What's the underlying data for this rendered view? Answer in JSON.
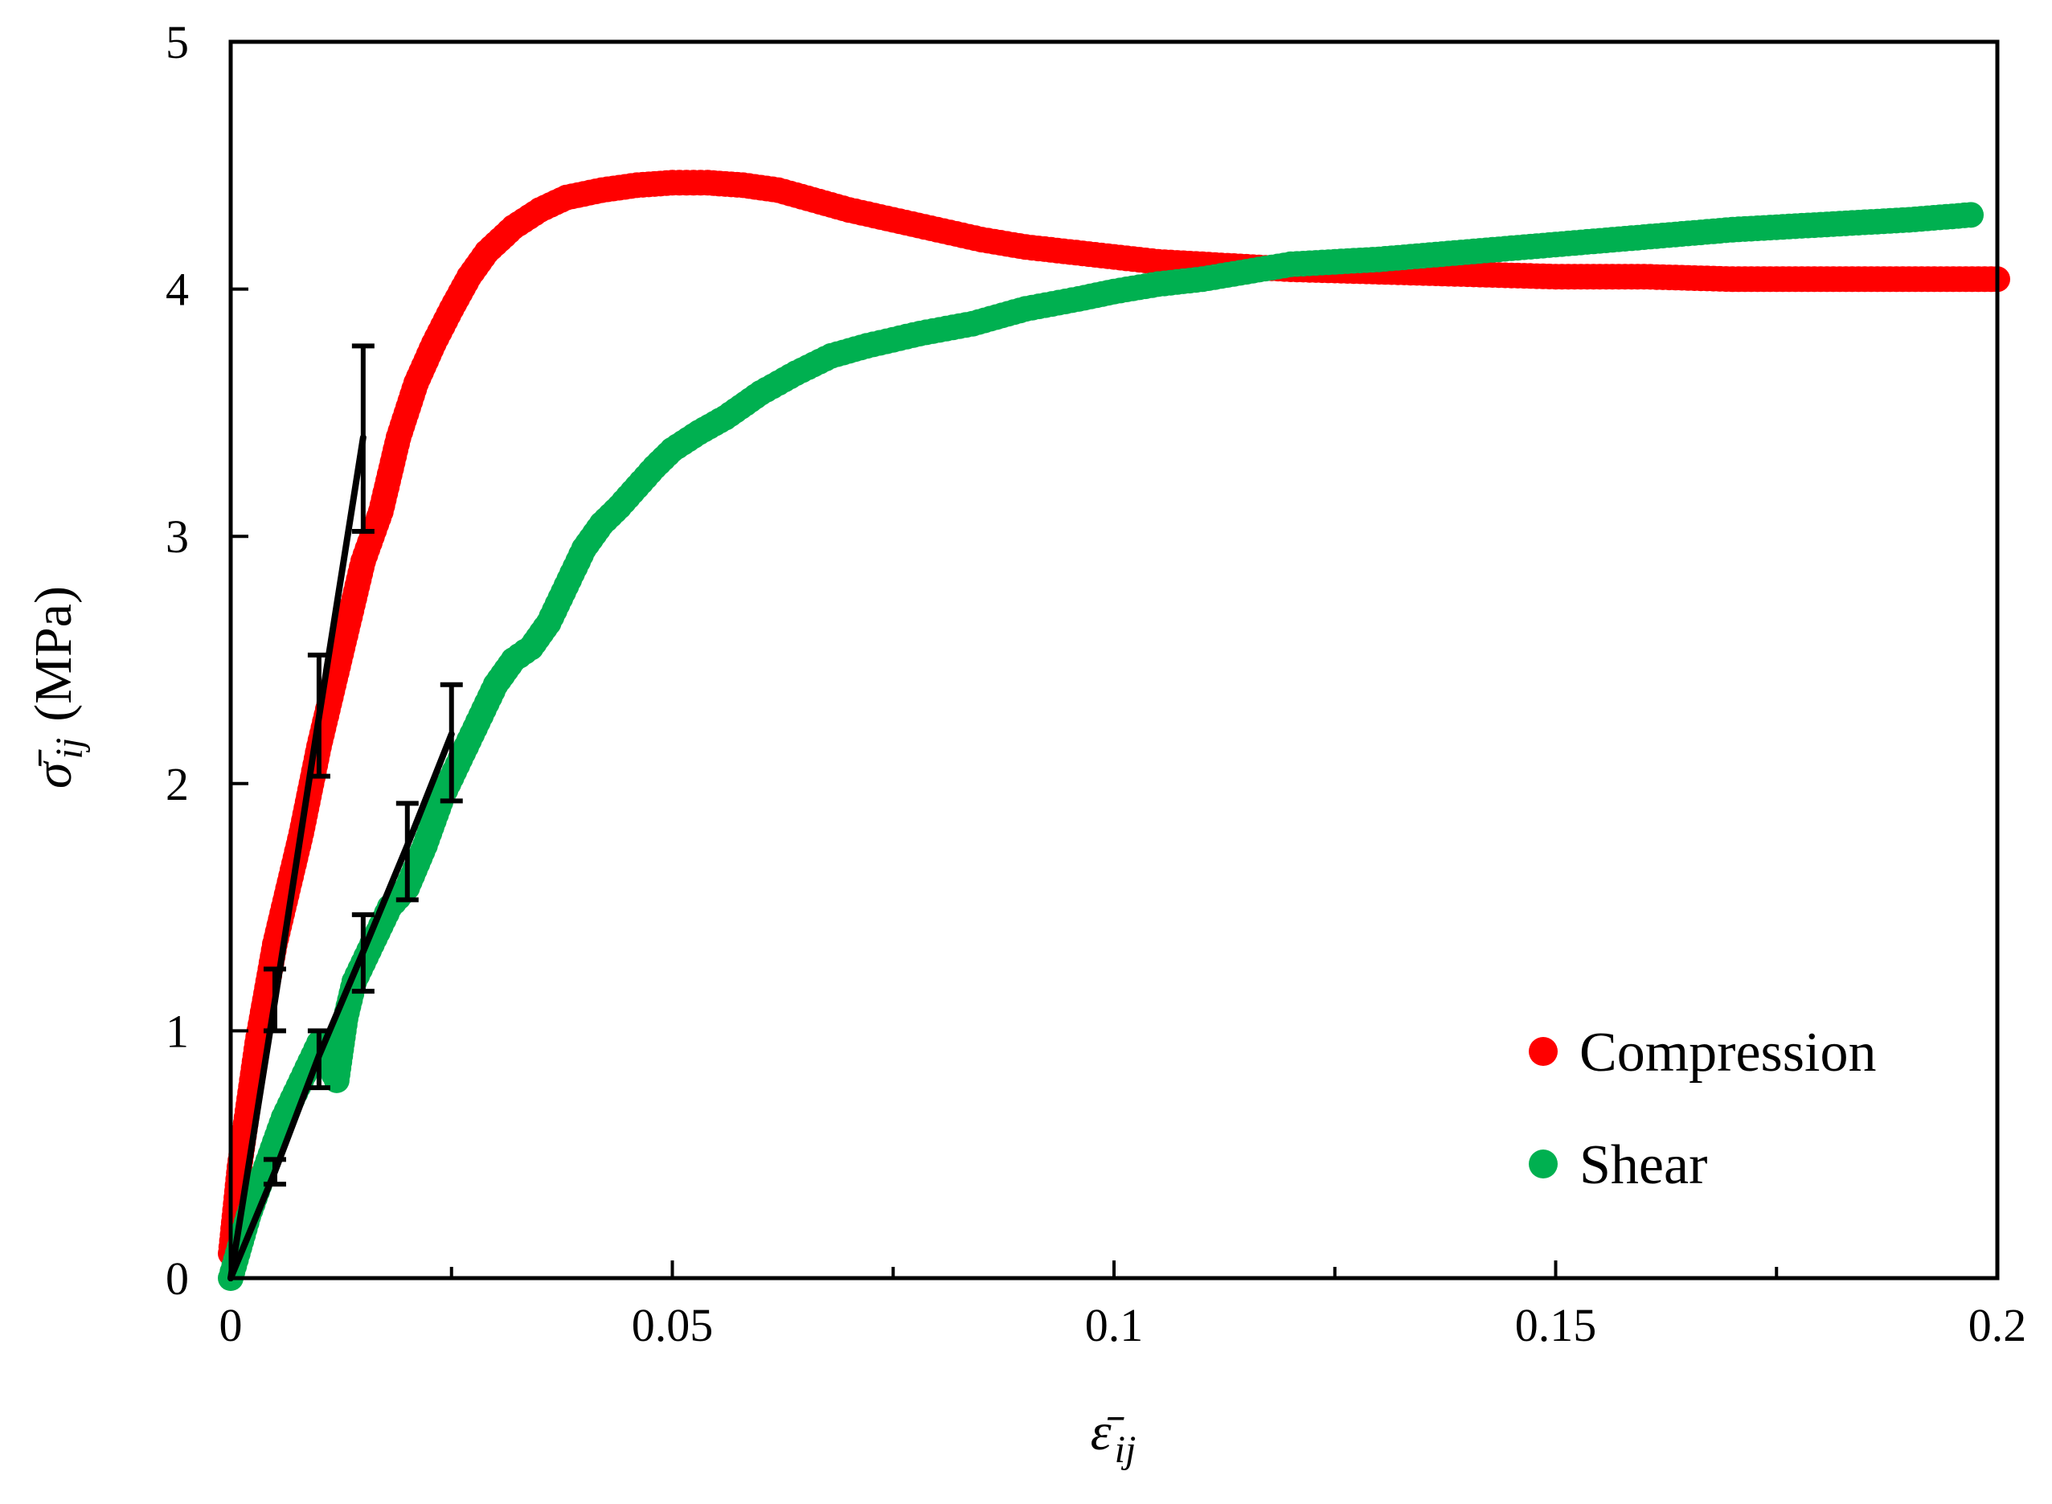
{
  "chart_data": {
    "type": "scatter",
    "title": "",
    "xlabel": "ε̄ij",
    "xlabel_main": "ε̄",
    "xlabel_sub": "ij",
    "ylabel": "σ̄ij (MPa)",
    "ylabel_main": "σ̄",
    "ylabel_sub": "ij",
    "ylabel_unit": "(MPa)",
    "xlim": [
      0,
      0.2
    ],
    "ylim": [
      0,
      5
    ],
    "xticks": [
      0,
      0.05,
      0.1,
      0.15,
      0.2
    ],
    "xtick_labels": [
      "0",
      "0.05",
      "0.1",
      "0.15",
      "0.2"
    ],
    "xminor": [
      0.025,
      0.075,
      0.125,
      0.175
    ],
    "yticks": [
      0,
      1,
      2,
      3,
      4,
      5
    ],
    "ytick_labels": [
      "0",
      "1",
      "2",
      "3",
      "4",
      "5"
    ],
    "grid": false,
    "legend_position": "bottom-right",
    "series": [
      {
        "name": "Compression",
        "color": "#ff0000",
        "marker": "circle",
        "curve_x": [
          0,
          0.001,
          0.002,
          0.003,
          0.004,
          0.005,
          0.006,
          0.008,
          0.01,
          0.012,
          0.014,
          0.015,
          0.017,
          0.019,
          0.021,
          0.023,
          0.025,
          0.027,
          0.029,
          0.032,
          0.035,
          0.038,
          0.042,
          0.046,
          0.05,
          0.054,
          0.058,
          0.062,
          0.066,
          0.07,
          0.075,
          0.08,
          0.085,
          0.09,
          0.095,
          0.1,
          0.105,
          0.11,
          0.115,
          0.12,
          0.13,
          0.14,
          0.15,
          0.16,
          0.17,
          0.18,
          0.19,
          0.2
        ],
        "curve_y": [
          0.1,
          0.45,
          0.7,
          0.95,
          1.15,
          1.35,
          1.5,
          1.8,
          2.15,
          2.45,
          2.75,
          2.9,
          3.1,
          3.4,
          3.62,
          3.78,
          3.92,
          4.05,
          4.15,
          4.25,
          4.32,
          4.37,
          4.4,
          4.42,
          4.43,
          4.43,
          4.42,
          4.4,
          4.36,
          4.32,
          4.28,
          4.24,
          4.2,
          4.17,
          4.15,
          4.13,
          4.11,
          4.1,
          4.09,
          4.08,
          4.07,
          4.06,
          4.05,
          4.05,
          4.04,
          4.04,
          4.04,
          4.04
        ],
        "fit_x": [
          0,
          0.005,
          0.01,
          0.015
        ],
        "fit_y": [
          0,
          1.12,
          2.27,
          3.4
        ],
        "err_low": [
          0,
          1.0,
          2.03,
          3.02
        ],
        "err_high": [
          0,
          1.25,
          2.52,
          3.77
        ]
      },
      {
        "name": "Shear",
        "color": "#00b050",
        "marker": "circle",
        "curve_x": [
          0,
          0.002,
          0.004,
          0.006,
          0.008,
          0.01,
          0.012,
          0.013,
          0.014,
          0.016,
          0.018,
          0.02,
          0.022,
          0.024,
          0.026,
          0.028,
          0.03,
          0.032,
          0.034,
          0.036,
          0.038,
          0.04,
          0.042,
          0.044,
          0.046,
          0.048,
          0.05,
          0.053,
          0.056,
          0.06,
          0.064,
          0.068,
          0.072,
          0.078,
          0.084,
          0.09,
          0.096,
          0.1,
          0.105,
          0.11,
          0.115,
          0.12,
          0.13,
          0.14,
          0.15,
          0.16,
          0.17,
          0.18,
          0.19,
          0.197
        ],
        "curve_y": [
          0,
          0.25,
          0.45,
          0.65,
          0.8,
          0.95,
          0.8,
          1.05,
          1.2,
          1.35,
          1.5,
          1.58,
          1.75,
          1.95,
          2.1,
          2.25,
          2.4,
          2.5,
          2.55,
          2.65,
          2.8,
          2.95,
          3.05,
          3.12,
          3.2,
          3.28,
          3.35,
          3.42,
          3.48,
          3.58,
          3.66,
          3.73,
          3.77,
          3.82,
          3.86,
          3.92,
          3.96,
          3.99,
          4.02,
          4.04,
          4.07,
          4.1,
          4.12,
          4.15,
          4.18,
          4.21,
          4.24,
          4.26,
          4.28,
          4.3
        ],
        "fit_x": [
          0,
          0.005,
          0.01,
          0.015,
          0.02,
          0.025
        ],
        "fit_y": [
          0,
          0.43,
          0.9,
          1.32,
          1.75,
          2.2
        ],
        "err_low": [
          0,
          0.38,
          0.77,
          1.16,
          1.53,
          1.93
        ],
        "err_high": [
          0,
          0.48,
          1.0,
          1.47,
          1.92,
          2.4
        ]
      }
    ]
  }
}
